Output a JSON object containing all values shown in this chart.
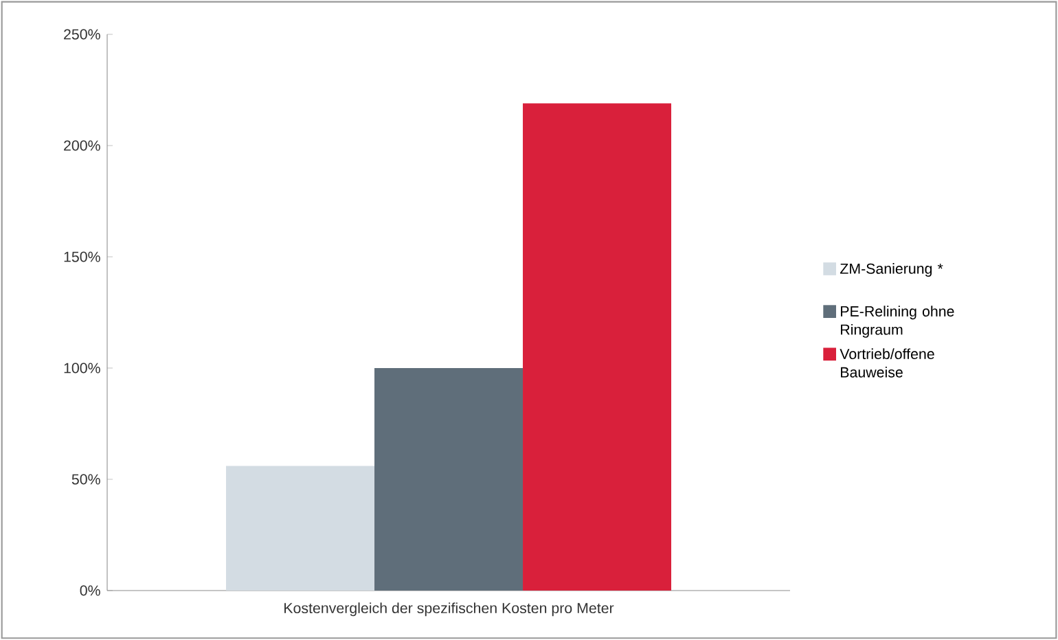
{
  "chart_data": {
    "type": "bar",
    "categories": [
      "Kostenvergleich der spezifischen Kosten pro Meter"
    ],
    "series": [
      {
        "name": "ZM-Sanierung *",
        "color": "#d3dce3",
        "values": [
          56
        ]
      },
      {
        "name": "PE-Relining ohne Ringraum",
        "color": "#5f6e7a",
        "values": [
          100
        ]
      },
      {
        "name": "Vortrieb/offene Bauweise",
        "color": "#d9203b",
        "values": [
          219
        ]
      }
    ],
    "ylim": [
      0,
      250
    ],
    "yticks": [
      {
        "value": 0,
        "label": "0%"
      },
      {
        "value": 50,
        "label": "50%"
      },
      {
        "value": 100,
        "label": "100%"
      },
      {
        "value": 150,
        "label": "150%"
      },
      {
        "value": 200,
        "label": "200%"
      },
      {
        "value": 250,
        "label": "250%"
      }
    ],
    "grid": false,
    "legend": "right"
  }
}
